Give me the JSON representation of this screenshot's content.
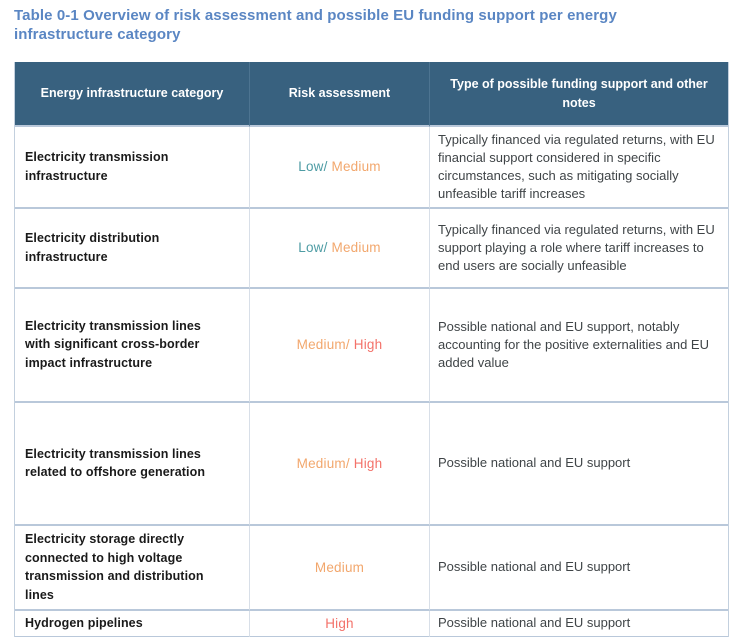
{
  "title": "Table 0-1 Overview of risk assessment and possible EU funding support per energy infrastructure category",
  "table": {
    "headers": {
      "category": "Energy infrastructure category",
      "risk": "Risk assessment",
      "support": "Type of possible funding support  and other notes"
    },
    "rows": [
      {
        "category": "Electricity transmission infrastructure",
        "risk": [
          {
            "text": "Low/",
            "level": "low"
          },
          {
            "text": " Medium",
            "level": "medium"
          }
        ],
        "support": "Typically financed via regulated returns, with EU financial support considered in specific circumstances, such as mitigating socially unfeasible tariff increases"
      },
      {
        "category": "Electricity distribution infrastructure",
        "risk": [
          {
            "text": "Low/",
            "level": "low"
          },
          {
            "text": " Medium",
            "level": "medium"
          }
        ],
        "support": "Typically financed via regulated returns, with EU support playing a role where tariff increases to end users are socially unfeasible"
      },
      {
        "category": "Electricity transmission lines with significant cross-border impact infrastructure",
        "risk": [
          {
            "text": "Medium/",
            "level": "medium"
          },
          {
            "text": " High",
            "level": "high"
          }
        ],
        "support": "Possible national and EU support, notably accounting for the positive externalities and EU added value"
      },
      {
        "category": "Electricity transmission lines related to offshore generation",
        "risk": [
          {
            "text": "Medium/",
            "level": "medium"
          },
          {
            "text": " High",
            "level": "high"
          }
        ],
        "support": "Possible national and EU support"
      },
      {
        "category": "Electricity storage directly connected to high voltage transmission and distribution lines",
        "risk": [
          {
            "text": "Medium",
            "level": "medium"
          }
        ],
        "support": "Possible national and EU support"
      },
      {
        "category": "Hydrogen pipelines",
        "risk": [
          {
            "text": "High",
            "level": "high"
          }
        ],
        "support": "Possible national and EU support"
      }
    ]
  },
  "colors": {
    "title_blue": "#5a86c3",
    "header_bg": "#38617f",
    "header_text": "#ffffff",
    "risk_low": "#4e9ca4",
    "risk_medium": "#f2a76d",
    "risk_high": "#f3726a",
    "border_blue": "#b9c8da"
  }
}
